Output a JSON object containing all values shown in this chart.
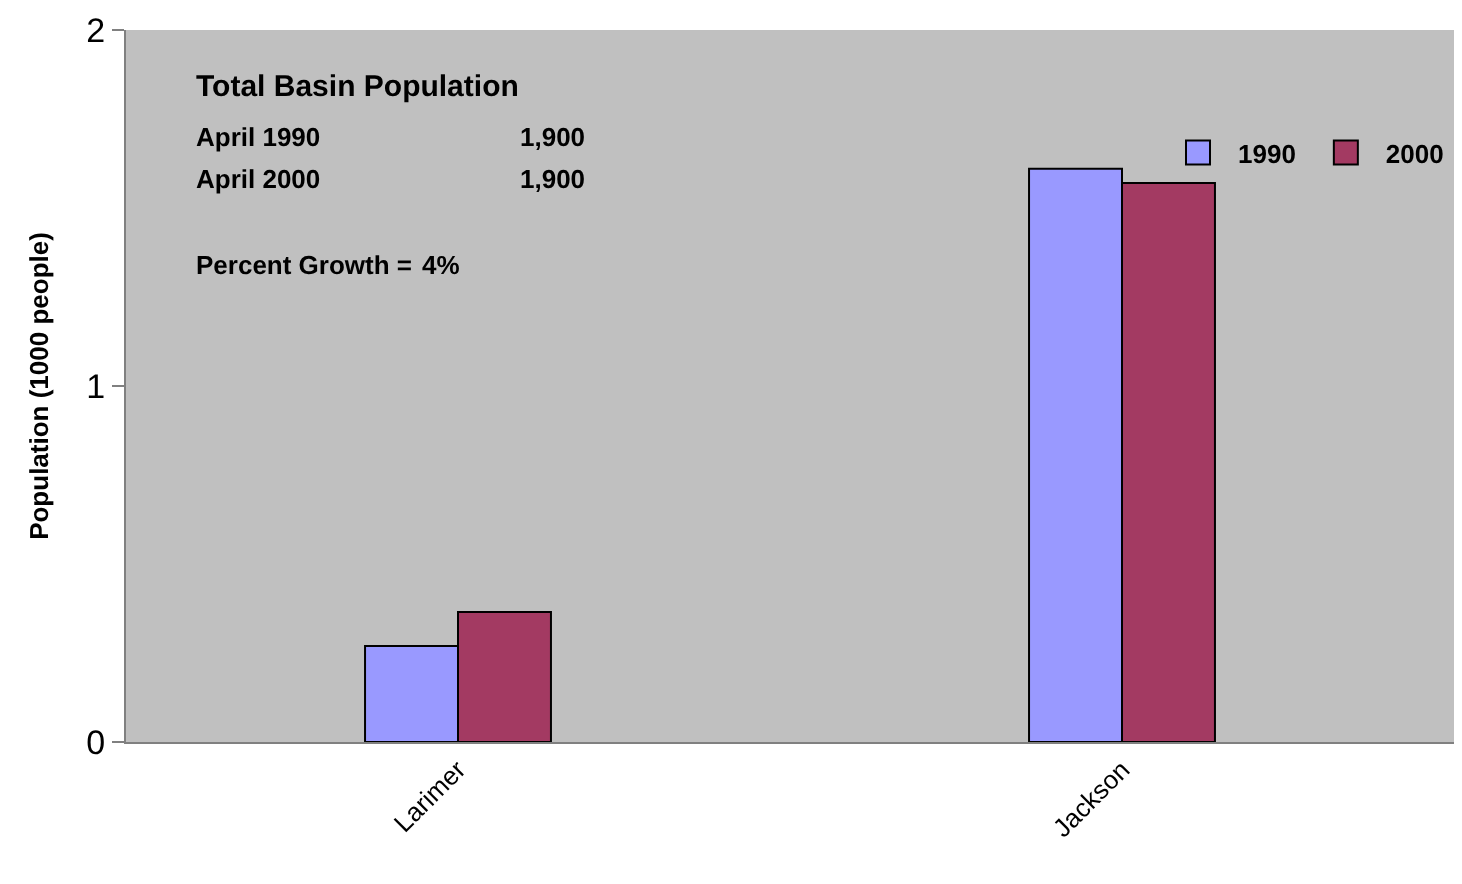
{
  "chart_data": {
    "type": "bar",
    "ylabel": "Population (1000 people)",
    "categories": [
      "Larimer",
      "Jackson"
    ],
    "series": [
      {
        "name": "1990",
        "color": "#9999ff",
        "values": [
          0.27,
          1.61
        ]
      },
      {
        "name": "2000",
        "color": "#a33a62",
        "values": [
          0.365,
          1.57
        ]
      }
    ],
    "ylim": [
      0,
      2
    ],
    "yticks": [
      0,
      1,
      2
    ],
    "grid": false,
    "legend": "top right",
    "annotations": [
      "Total Basin Population",
      "April 1990",
      "1,900",
      "April 2000",
      "1,900",
      "Percent Growth =",
      "4%"
    ]
  }
}
